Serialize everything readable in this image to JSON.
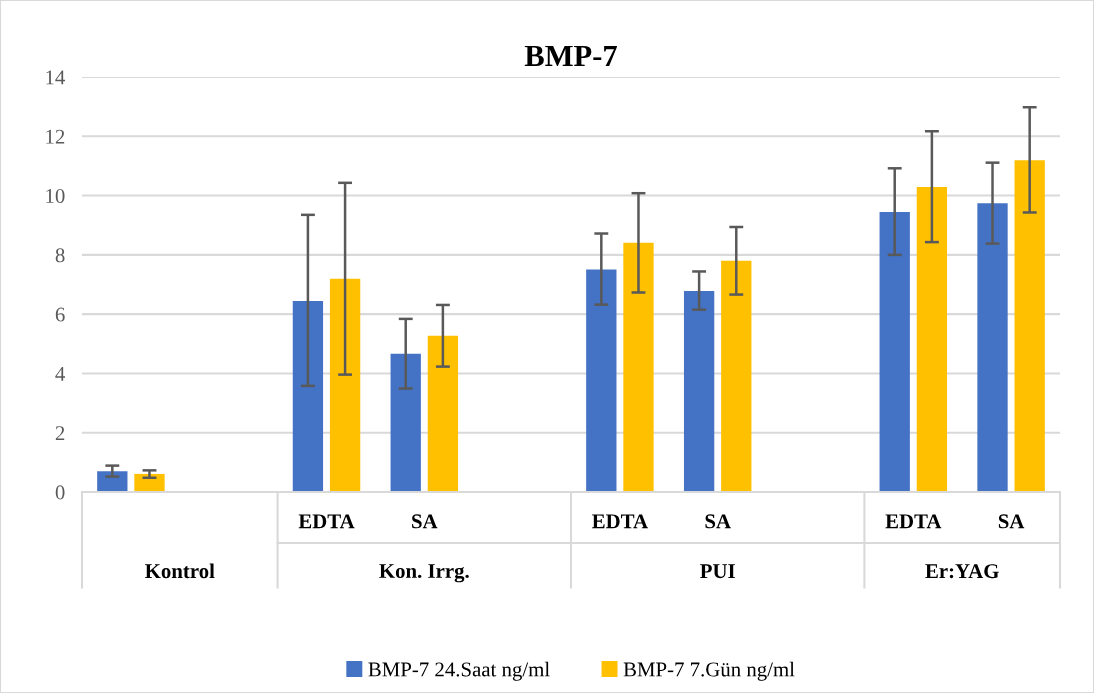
{
  "chart_data": {
    "type": "bar",
    "title": "BMP-7",
    "categories": [
      null,
      null,
      "EDTA",
      "SA",
      null,
      "EDTA",
      "SA",
      null,
      "EDTA",
      "SA"
    ],
    "series": [
      {
        "name": "BMP-7 24.Saat ng/ml",
        "color": "#4472c4",
        "values": [
          0.7,
          null,
          6.44,
          4.66,
          null,
          7.51,
          6.78,
          null,
          9.45,
          9.74
        ],
        "errors": [
          [
            0.52,
            0.89
          ],
          null,
          [
            3.58,
            9.35
          ],
          [
            3.49,
            5.84
          ],
          null,
          [
            6.32,
            8.72
          ],
          [
            6.15,
            7.44
          ],
          null,
          [
            8.0,
            10.92
          ],
          [
            8.38,
            11.11
          ]
        ]
      },
      {
        "name": "BMP-7 7.Gün ng/ml",
        "color": "#ffc000",
        "values": [
          0.61,
          null,
          7.19,
          5.27,
          null,
          8.41,
          7.8,
          null,
          10.29,
          11.19
        ],
        "errors": [
          [
            0.48,
            0.73
          ],
          null,
          [
            3.96,
            10.43
          ],
          [
            4.23,
            6.31
          ],
          null,
          [
            6.73,
            10.08
          ],
          [
            6.66,
            8.94
          ],
          null,
          [
            8.43,
            12.17
          ],
          [
            9.43,
            12.98
          ]
        ]
      }
    ],
    "annotations": [
      "Kontrol",
      "Kon. Irrg.",
      "PUI",
      "Er:YAG"
    ],
    "ylim": [
      0,
      14
    ],
    "yticks": [
      0,
      2,
      4,
      6,
      8,
      10,
      12,
      14
    ],
    "grid": "y",
    "legend": "bottom"
  }
}
